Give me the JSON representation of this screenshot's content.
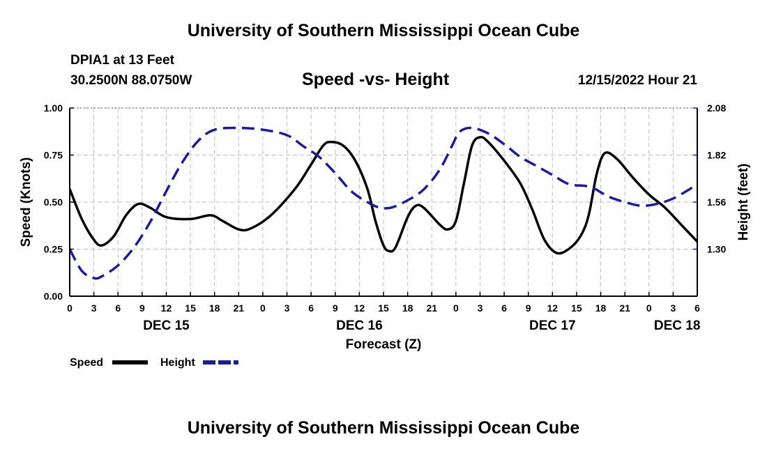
{
  "header": {
    "title": "University of Southern Mississippi Ocean Cube",
    "station": "DPIA1 at 13 Feet",
    "coords": "30.2500N  88.0750W",
    "subtitle": "Speed -vs- Height",
    "datetime": "12/15/2022 Hour 21"
  },
  "footer": {
    "title": "University of Southern Mississippi Ocean Cube"
  },
  "chart_data": {
    "type": "line",
    "title": "Speed -vs- Height",
    "xlabel": "Forecast (Z)",
    "ylabel": "Speed (Knots)",
    "y2label": "Height (feet)",
    "xlim": [
      0,
      78
    ],
    "ylim": [
      0,
      1
    ],
    "y2lim": [
      1.04,
      2.08
    ],
    "grid": true,
    "x_ticks": [
      0,
      3,
      6,
      9,
      12,
      15,
      18,
      21,
      24,
      27,
      30,
      33,
      36,
      39,
      42,
      45,
      48,
      51,
      54,
      57,
      60,
      63,
      66,
      69,
      72,
      75,
      78
    ],
    "x_tick_labels": [
      "0",
      "3",
      "6",
      "9",
      "12",
      "15",
      "18",
      "21",
      "0",
      "3",
      "6",
      "9",
      "12",
      "15",
      "18",
      "21",
      "0",
      "3",
      "6",
      "9",
      "12",
      "15",
      "18",
      "21",
      "0",
      "3",
      "6"
    ],
    "y_ticks": [
      0,
      0.25,
      0.5,
      0.75,
      1.0
    ],
    "y_tick_labels": [
      "0.00",
      "0.25",
      "0.50",
      "0.75",
      "1.00"
    ],
    "y2_ticks": [
      1.3,
      1.56,
      1.82,
      2.08
    ],
    "y2_tick_labels": [
      "1.30",
      "1.56",
      "1.82",
      "2.08"
    ],
    "day_labels": [
      {
        "x": 12,
        "label": "DEC 15"
      },
      {
        "x": 36,
        "label": "DEC 16"
      },
      {
        "x": 60,
        "label": "DEC 17"
      },
      {
        "x": 75.5,
        "label": "DEC 18"
      }
    ],
    "series": [
      {
        "name": "Speed",
        "axis": "left",
        "color": "#000000",
        "style": "solid",
        "points": [
          [
            0,
            0.57
          ],
          [
            1.5,
            0.41
          ],
          [
            3,
            0.3
          ],
          [
            4,
            0.27
          ],
          [
            5.5,
            0.32
          ],
          [
            7,
            0.43
          ],
          [
            8.5,
            0.49
          ],
          [
            10,
            0.47
          ],
          [
            12,
            0.42
          ],
          [
            15,
            0.41
          ],
          [
            17.5,
            0.43
          ],
          [
            19,
            0.4
          ],
          [
            21,
            0.355
          ],
          [
            22.5,
            0.36
          ],
          [
            25,
            0.43
          ],
          [
            28,
            0.57
          ],
          [
            30,
            0.7
          ],
          [
            31.5,
            0.8
          ],
          [
            32.5,
            0.82
          ],
          [
            34,
            0.8
          ],
          [
            35.5,
            0.72
          ],
          [
            37,
            0.57
          ],
          [
            38,
            0.4
          ],
          [
            39,
            0.27
          ],
          [
            39.7,
            0.24
          ],
          [
            40.5,
            0.26
          ],
          [
            42,
            0.42
          ],
          [
            43,
            0.48
          ],
          [
            44,
            0.47
          ],
          [
            46,
            0.38
          ],
          [
            47,
            0.355
          ],
          [
            48,
            0.4
          ],
          [
            49,
            0.6
          ],
          [
            50,
            0.8
          ],
          [
            51,
            0.845
          ],
          [
            52,
            0.82
          ],
          [
            54,
            0.72
          ],
          [
            56,
            0.6
          ],
          [
            57.5,
            0.46
          ],
          [
            59,
            0.3
          ],
          [
            60.5,
            0.23
          ],
          [
            62,
            0.25
          ],
          [
            63.5,
            0.32
          ],
          [
            64.5,
            0.43
          ],
          [
            65.5,
            0.65
          ],
          [
            66.5,
            0.76
          ],
          [
            68,
            0.73
          ],
          [
            70,
            0.63
          ],
          [
            72,
            0.54
          ],
          [
            74,
            0.47
          ],
          [
            76,
            0.38
          ],
          [
            78,
            0.29
          ]
        ]
      },
      {
        "name": "Height",
        "axis": "right",
        "color": "#1a1aa6",
        "style": "dashed",
        "points": [
          [
            0,
            1.3
          ],
          [
            1.5,
            1.18
          ],
          [
            3,
            1.14
          ],
          [
            4,
            1.15
          ],
          [
            6,
            1.21
          ],
          [
            8,
            1.31
          ],
          [
            10,
            1.45
          ],
          [
            12,
            1.62
          ],
          [
            14,
            1.78
          ],
          [
            16,
            1.9
          ],
          [
            18,
            1.96
          ],
          [
            21,
            1.97
          ],
          [
            24,
            1.96
          ],
          [
            27,
            1.93
          ],
          [
            29,
            1.87
          ],
          [
            31,
            1.81
          ],
          [
            33,
            1.72
          ],
          [
            35,
            1.62
          ],
          [
            37,
            1.56
          ],
          [
            38.5,
            1.53
          ],
          [
            40,
            1.53
          ],
          [
            42,
            1.57
          ],
          [
            44,
            1.63
          ],
          [
            46,
            1.74
          ],
          [
            47.5,
            1.87
          ],
          [
            48.5,
            1.95
          ],
          [
            50,
            1.97
          ],
          [
            52,
            1.94
          ],
          [
            54,
            1.88
          ],
          [
            56,
            1.81
          ],
          [
            58,
            1.76
          ],
          [
            60,
            1.71
          ],
          [
            62,
            1.66
          ],
          [
            64,
            1.65
          ],
          [
            65,
            1.64
          ],
          [
            67,
            1.59
          ],
          [
            69,
            1.56
          ],
          [
            71,
            1.54
          ],
          [
            73,
            1.55
          ],
          [
            75,
            1.58
          ],
          [
            77,
            1.63
          ],
          [
            78,
            1.66
          ]
        ]
      }
    ],
    "legend": [
      {
        "label": "Speed",
        "color": "#000000",
        "style": "solid"
      },
      {
        "label": "Height",
        "color": "#1a1aa6",
        "style": "dashed"
      }
    ]
  }
}
